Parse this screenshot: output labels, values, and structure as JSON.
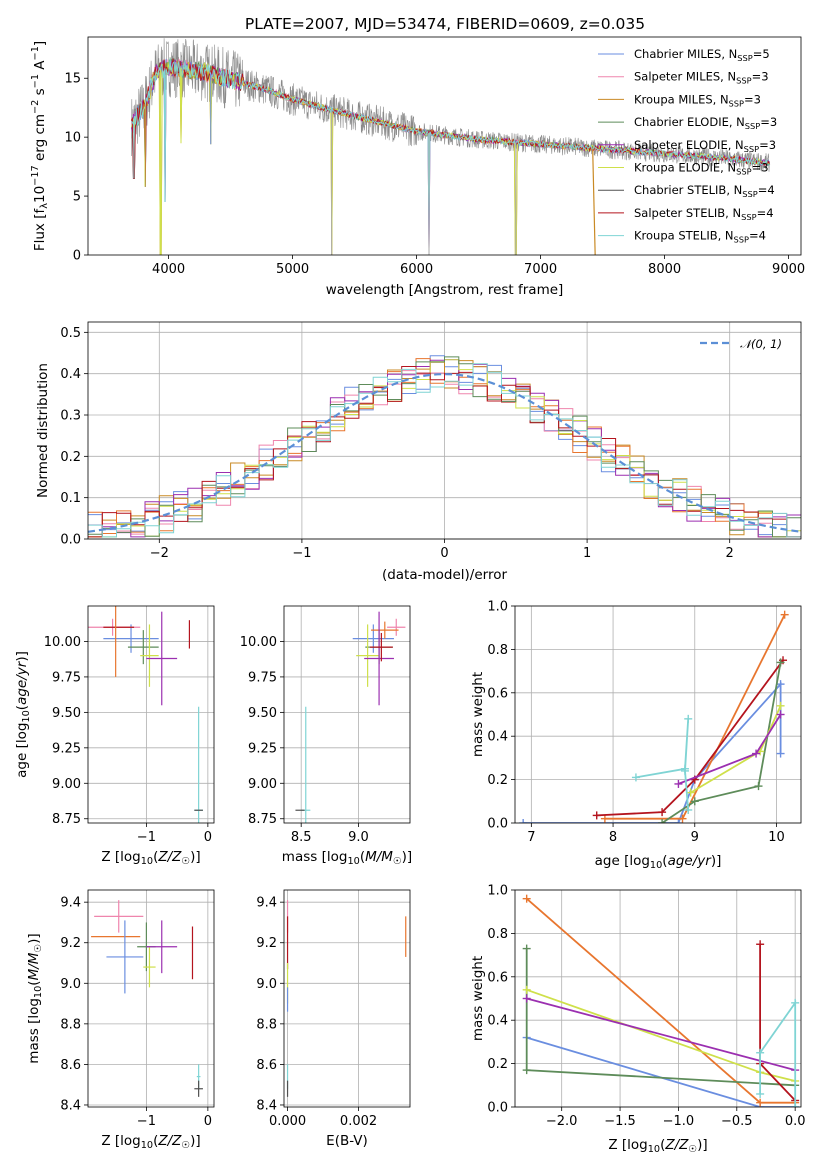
{
  "figure": {
    "title": "PLATE=2007, MJD=53474, FIBERID=0609, z=0.035"
  },
  "colors": {
    "chabrier_miles": "#6a8ee0",
    "salpeter_miles": "#ef85ad",
    "kroupa_miles": "#c98a25",
    "chabrier_elodie": "#5e8c5a",
    "salpeter_elodie": "#9b2fb0",
    "kroupa_elodie": "#cfe04a",
    "chabrier_stelib": "#505050",
    "salpeter_stelib": "#b4141e",
    "kroupa_stelib": "#7fd4d4",
    "data": "#8a8a8a",
    "normal": "#5b8fd6",
    "orange": "#e8762f"
  },
  "chart_data": [
    {
      "id": "spectrum",
      "type": "line",
      "title": "PLATE=2007, MJD=53474, FIBERID=0609, z=0.035",
      "xlabel": "wavelength [Angstrom, rest frame]",
      "ylabel": "Flux [fλ10⁻¹⁷ erg cm⁻² s⁻¹ A⁻¹]",
      "xlim": [
        3350,
        9100
      ],
      "ylim": [
        0,
        18.5
      ],
      "xticks": [
        4000,
        5000,
        6000,
        7000,
        8000,
        9000
      ],
      "yticks": [
        0,
        5,
        10,
        15
      ],
      "grid": false,
      "legend_position": "top-right",
      "legend": [
        {
          "name": "Chabrier MILES, N",
          "sub": "SSP",
          "tail": "=5",
          "color_key": "chabrier_miles"
        },
        {
          "name": "Salpeter MILES, N",
          "sub": "SSP",
          "tail": "=3",
          "color_key": "salpeter_miles"
        },
        {
          "name": "Kroupa MILES, N",
          "sub": "SSP",
          "tail": "=3",
          "color_key": "kroupa_miles"
        },
        {
          "name": "Chabrier ELODIE, N",
          "sub": "SSP",
          "tail": "=3",
          "color_key": "chabrier_elodie"
        },
        {
          "name": "Salpeter ELODIE, N",
          "sub": "SSP",
          "tail": "=3",
          "color_key": "salpeter_elodie"
        },
        {
          "name": "Kroupa ELODIE, N",
          "sub": "SSP",
          "tail": "=3",
          "color_key": "kroupa_elodie"
        },
        {
          "name": "Chabrier STELIB, N",
          "sub": "SSP",
          "tail": "=4",
          "color_key": "chabrier_stelib"
        },
        {
          "name": "Salpeter STELIB, N",
          "sub": "SSP",
          "tail": "=4",
          "color_key": "salpeter_stelib"
        },
        {
          "name": "Kroupa STELIB, N",
          "sub": "SSP",
          "tail": "=4",
          "color_key": "kroupa_stelib"
        }
      ],
      "continuum": [
        [
          3700,
          11
        ],
        [
          3800,
          12.5
        ],
        [
          3900,
          15.5
        ],
        [
          4000,
          16
        ],
        [
          4300,
          15.5
        ],
        [
          4800,
          14
        ],
        [
          5000,
          13.2
        ],
        [
          5500,
          11.8
        ],
        [
          6000,
          10.5
        ],
        [
          6500,
          9.8
        ],
        [
          7000,
          9.4
        ],
        [
          7500,
          9
        ],
        [
          8000,
          8.6
        ],
        [
          8500,
          8.2
        ],
        [
          8850,
          7.8
        ]
      ],
      "data_range": [
        3700,
        8850
      ],
      "dips": [
        {
          "x": 3720,
          "y": 6.5
        },
        {
          "x": 3810,
          "y": 5.8
        },
        {
          "x": 3935,
          "y": 0
        },
        {
          "x": 3970,
          "y": 4.5
        },
        {
          "x": 4100,
          "y": 9.5
        },
        {
          "x": 4340,
          "y": 9.4
        },
        {
          "x": 5315,
          "y": 0
        },
        {
          "x": 6100,
          "y": 0
        },
        {
          "x": 6800,
          "y": 0
        }
      ],
      "tails": [
        {
          "color_key": "kroupa_miles",
          "x0": 7420,
          "y0": 9,
          "x1": 7440,
          "y1": 0
        }
      ]
    },
    {
      "id": "residuals",
      "type": "step",
      "xlabel": "(data-model)/error",
      "ylabel": "Normed distribution",
      "xlim": [
        -2.5,
        2.5
      ],
      "ylim": [
        0,
        0.525
      ],
      "xticks": [
        -2,
        -1,
        0,
        1,
        2
      ],
      "yticks": [
        0.0,
        0.1,
        0.2,
        0.3,
        0.4,
        0.5
      ],
      "grid": true,
      "legend_position": "top-right",
      "legend_label": "𝒩(0, 1)",
      "bin_width": 0.1,
      "series_color_keys": [
        "chabrier_miles",
        "salpeter_miles",
        "kroupa_miles",
        "orange",
        "salpeter_elodie",
        "kroupa_elodie",
        "chabrier_elodie",
        "salpeter_stelib",
        "kroupa_stelib"
      ]
    },
    {
      "id": "age_vs_Z",
      "type": "errorbar",
      "xlabel": "Z [log₁₀(Z/Z☉)]",
      "ylabel": "age  [log₁₀(age/yr)]",
      "xlim": [
        -1.95,
        0.1
      ],
      "ylim": [
        8.72,
        10.25
      ],
      "xticks": [
        -1,
        0
      ],
      "yticks": [
        8.75,
        9.0,
        9.25,
        9.5,
        9.75,
        10.0
      ],
      "grid": true,
      "points": [
        {
          "x": -1.25,
          "y": 10.02,
          "xerr": 0.45,
          "yerr": 0.1,
          "color_key": "chabrier_miles"
        },
        {
          "x": -1.55,
          "y": 10.1,
          "xerr": 0.45,
          "yerr": 0.06,
          "color_key": "salpeter_miles"
        },
        {
          "x": -1.45,
          "y": 10.1,
          "xerr": 0.25,
          "yerr": 0.0,
          "color_key": "salpeter_stelib"
        },
        {
          "x": -1.5,
          "y": 10.05,
          "xerr": 0.0,
          "yerr": 0.3,
          "color_key": "orange"
        },
        {
          "x": -1.05,
          "y": 9.96,
          "xerr": 0.25,
          "yerr": 0.12,
          "color_key": "chabrier_elodie"
        },
        {
          "x": -0.95,
          "y": 9.9,
          "xerr": 0.15,
          "yerr": 0.22,
          "color_key": "kroupa_elodie"
        },
        {
          "x": -0.75,
          "y": 9.88,
          "xerr": 0.25,
          "yerr": 0.33,
          "color_key": "salpeter_elodie"
        },
        {
          "x": -0.3,
          "y": 10.05,
          "xerr": 0.0,
          "yerr": 0.1,
          "color_key": "salpeter_stelib"
        },
        {
          "x": -0.15,
          "y": 8.81,
          "xerr": 0.07,
          "yerr": 0.73,
          "color_key": "kroupa_stelib"
        },
        {
          "x": -0.15,
          "y": 8.81,
          "xerr": 0.07,
          "yerr": 0.0,
          "color_key": "chabrier_stelib"
        },
        {
          "x": -0.35,
          "y": 10.0,
          "xerr": 0.0,
          "yerr": 0.0,
          "color_key": "salpeter_stelib"
        }
      ]
    },
    {
      "id": "age_vs_mass",
      "type": "errorbar",
      "xlabel": "mass [log₁₀(M/M☉)]",
      "ylabel": "",
      "xlim": [
        8.35,
        9.45
      ],
      "ylim": [
        8.72,
        10.25
      ],
      "xticks": [
        8.5,
        9.0
      ],
      "yticks": [
        8.75,
        9.0,
        9.25,
        9.5,
        9.75,
        10.0
      ],
      "grid": true,
      "points": [
        {
          "x": 9.13,
          "y": 10.02,
          "xerr": 0.18,
          "yerr": 0.1,
          "color_key": "chabrier_miles"
        },
        {
          "x": 9.33,
          "y": 10.1,
          "xerr": 0.08,
          "yerr": 0.06,
          "color_key": "salpeter_miles"
        },
        {
          "x": 9.23,
          "y": 10.08,
          "xerr": 0.12,
          "yerr": 0.06,
          "color_key": "orange"
        },
        {
          "x": 9.18,
          "y": 9.96,
          "xerr": 0.12,
          "yerr": 0.12,
          "color_key": "chabrier_elodie"
        },
        {
          "x": 9.08,
          "y": 9.9,
          "xerr": 0.1,
          "yerr": 0.22,
          "color_key": "kroupa_elodie"
        },
        {
          "x": 9.18,
          "y": 9.88,
          "xerr": 0.13,
          "yerr": 0.33,
          "color_key": "salpeter_elodie"
        },
        {
          "x": 9.2,
          "y": 9.96,
          "xerr": 0.1,
          "yerr": 0.1,
          "color_key": "salpeter_stelib"
        },
        {
          "x": 8.54,
          "y": 8.81,
          "xerr": 0.04,
          "yerr": 0.73,
          "color_key": "kroupa_stelib"
        },
        {
          "x": 8.49,
          "y": 8.81,
          "xerr": 0.04,
          "yerr": 0.0,
          "color_key": "chabrier_stelib"
        }
      ]
    },
    {
      "id": "mass_weight_vs_age",
      "type": "line",
      "xlabel": "age  [log₁₀(age/yr)]",
      "ylabel": "mass weight",
      "xlim": [
        6.8,
        10.3
      ],
      "ylim": [
        0,
        1.0
      ],
      "xticks": [
        7,
        8,
        9,
        10
      ],
      "yticks": [
        0.0,
        0.2,
        0.4,
        0.6,
        0.8,
        1.0
      ],
      "grid": true,
      "series": [
        {
          "color_key": "chabrier_miles",
          "points": [
            [
              6.9,
              0.0
            ],
            [
              8.8,
              0.0
            ],
            [
              9.0,
              0.2
            ],
            [
              10.05,
              0.64
            ],
            [
              10.05,
              0.32
            ]
          ]
        },
        {
          "color_key": "orange",
          "points": [
            [
              7.9,
              0.02
            ],
            [
              8.85,
              0.02
            ],
            [
              10.1,
              0.96
            ]
          ]
        },
        {
          "color_key": "salpeter_stelib",
          "points": [
            [
              7.8,
              0.035
            ],
            [
              8.6,
              0.05
            ],
            [
              9.0,
              0.2
            ],
            [
              10.08,
              0.75
            ]
          ]
        },
        {
          "color_key": "chabrier_elodie",
          "points": [
            [
              8.6,
              0.0
            ],
            [
              9.0,
              0.1
            ],
            [
              9.78,
              0.17
            ],
            [
              10.05,
              0.74
            ]
          ]
        },
        {
          "color_key": "kroupa_elodie",
          "points": [
            [
              8.95,
              0.14
            ],
            [
              9.8,
              0.33
            ],
            [
              10.05,
              0.54
            ]
          ]
        },
        {
          "color_key": "salpeter_elodie",
          "points": [
            [
              8.8,
              0.18
            ],
            [
              9.75,
              0.32
            ],
            [
              10.05,
              0.5
            ]
          ]
        },
        {
          "color_key": "kroupa_stelib",
          "points": [
            [
              8.28,
              0.21
            ],
            [
              8.88,
              0.25
            ],
            [
              8.92,
              0.48
            ],
            [
              8.88,
              0.24
            ],
            [
              8.92,
              0.06
            ]
          ]
        }
      ]
    },
    {
      "id": "mass_vs_Z",
      "type": "errorbar",
      "xlabel": "Z [log₁₀(Z/Z☉)]",
      "ylabel": "mass [log₁₀(M/M☉)]",
      "xlim": [
        -1.95,
        0.1
      ],
      "ylim": [
        8.39,
        9.46
      ],
      "xticks": [
        -1,
        0
      ],
      "yticks": [
        8.4,
        8.6,
        8.8,
        9.0,
        9.2,
        9.4
      ],
      "grid": true,
      "points": [
        {
          "x": -1.45,
          "y": 9.33,
          "xerr": 0.4,
          "yerr": 0.08,
          "color_key": "salpeter_miles"
        },
        {
          "x": -1.5,
          "y": 9.23,
          "xerr": 0.4,
          "yerr": 0.0,
          "color_key": "orange"
        },
        {
          "x": -1.35,
          "y": 9.13,
          "xerr": 0.3,
          "yerr": 0.18,
          "color_key": "chabrier_miles"
        },
        {
          "x": -1.0,
          "y": 9.18,
          "xerr": 0.15,
          "yerr": 0.12,
          "color_key": "chabrier_elodie"
        },
        {
          "x": -0.95,
          "y": 9.08,
          "xerr": 0.1,
          "yerr": 0.1,
          "color_key": "kroupa_elodie"
        },
        {
          "x": -0.75,
          "y": 9.18,
          "xerr": 0.25,
          "yerr": 0.13,
          "color_key": "salpeter_elodie"
        },
        {
          "x": -0.25,
          "y": 9.15,
          "xerr": 0.0,
          "yerr": 0.13,
          "color_key": "salpeter_stelib"
        },
        {
          "x": -0.15,
          "y": 8.54,
          "xerr": 0.03,
          "yerr": 0.06,
          "color_key": "kroupa_stelib"
        },
        {
          "x": -0.15,
          "y": 8.48,
          "xerr": 0.07,
          "yerr": 0.04,
          "color_key": "chabrier_stelib"
        }
      ]
    },
    {
      "id": "mass_vs_EBV",
      "type": "errorbar",
      "xlabel": "E(B-V)",
      "ylabel": "",
      "xlim": [
        -0.0001,
        0.00345
      ],
      "ylim": [
        8.39,
        9.46
      ],
      "xticks": [
        0.0,
        0.002
      ],
      "xtick_labels": [
        "0.000",
        "0.002"
      ],
      "yticks": [
        8.4,
        8.6,
        8.8,
        9.0,
        9.2,
        9.4
      ],
      "grid": true,
      "points": [
        {
          "x": 0.0,
          "y": 9.33,
          "xerr": 0.0,
          "yerr": 0.08,
          "color_key": "salpeter_miles"
        },
        {
          "x": 0.0,
          "y": 9.2,
          "xerr": 0.0,
          "yerr": 0.13,
          "color_key": "salpeter_stelib"
        },
        {
          "x": 0.0,
          "y": 9.0,
          "xerr": 0.0,
          "yerr": 0.1,
          "color_key": "kroupa_elodie"
        },
        {
          "x": 0.0,
          "y": 8.92,
          "xerr": 0.0,
          "yerr": 0.06,
          "color_key": "chabrier_miles"
        },
        {
          "x": 0.0,
          "y": 8.54,
          "xerr": 0.0,
          "yerr": 0.06,
          "color_key": "kroupa_stelib"
        },
        {
          "x": 0.0,
          "y": 8.48,
          "xerr": 0.0,
          "yerr": 0.04,
          "color_key": "chabrier_stelib"
        },
        {
          "x": 0.00333,
          "y": 9.23,
          "xerr": 0.0,
          "yerr": 0.1,
          "color_key": "orange"
        }
      ]
    },
    {
      "id": "mass_weight_vs_Z",
      "type": "line",
      "xlabel": "Z [log₁₀(Z/Z☉)]",
      "ylabel": "mass weight",
      "xlim": [
        -2.4,
        0.05
      ],
      "ylim": [
        0,
        1.0
      ],
      "xticks": [
        -2.0,
        -1.5,
        -1.0,
        -0.5,
        0.0
      ],
      "yticks": [
        0.0,
        0.2,
        0.4,
        0.6,
        0.8,
        1.0
      ],
      "grid": true,
      "series": [
        {
          "color_key": "chabrier_miles",
          "points": [
            [
              -2.3,
              0.32
            ],
            [
              -0.3,
              0.0
            ],
            [
              0.0,
              0.0
            ]
          ]
        },
        {
          "color_key": "orange",
          "points": [
            [
              -2.3,
              0.96
            ],
            [
              -0.3,
              0.02
            ],
            [
              0.0,
              0.02
            ]
          ]
        },
        {
          "color_key": "chabrier_elodie",
          "points": [
            [
              -2.3,
              0.73
            ],
            [
              -2.3,
              0.17
            ],
            [
              0.0,
              0.1
            ]
          ]
        },
        {
          "color_key": "kroupa_elodie",
          "points": [
            [
              -2.3,
              0.54
            ],
            [
              -0.3,
              0.16
            ],
            [
              0.0,
              0.12
            ]
          ]
        },
        {
          "color_key": "salpeter_elodie",
          "points": [
            [
              -2.3,
              0.5
            ],
            [
              0.0,
              0.17
            ]
          ]
        },
        {
          "color_key": "salpeter_stelib",
          "points": [
            [
              -0.3,
              0.75
            ],
            [
              -0.3,
              0.2
            ],
            [
              0.0,
              0.03
            ]
          ]
        },
        {
          "color_key": "kroupa_stelib",
          "points": [
            [
              -0.3,
              0.06
            ],
            [
              -0.3,
              0.25
            ],
            [
              0.0,
              0.48
            ],
            [
              0.0,
              0.0
            ]
          ]
        }
      ]
    }
  ]
}
